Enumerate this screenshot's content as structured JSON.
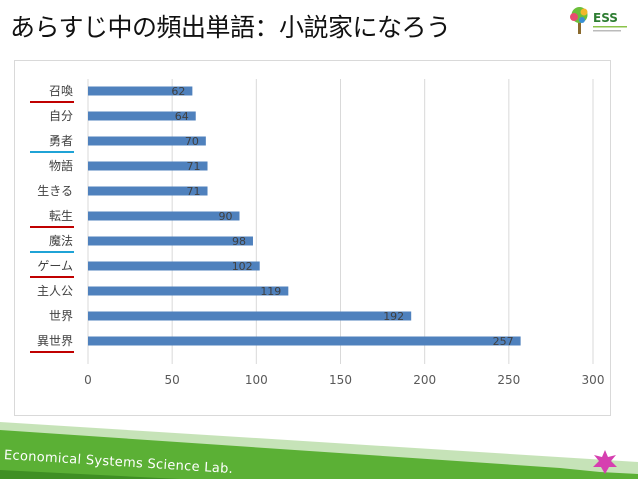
{
  "title": "あらすじ中の頻出単語：小説家になろう",
  "logo_text": "ESS",
  "footer_text": "Economical Systems Science Lab.",
  "colors": {
    "bar": "#4f81bd",
    "underline_red": "#c00000",
    "underline_blue": "#1fa3d6",
    "footer_green": "#5bb035",
    "star": "#d63fb0"
  },
  "chart_data": {
    "type": "bar",
    "orientation": "horizontal",
    "categories": [
      "召喚",
      "自分",
      "勇者",
      "物語",
      "生きる",
      "転生",
      "魔法",
      "ゲーム",
      "主人公",
      "世界",
      "異世界"
    ],
    "values": [
      62,
      64,
      70,
      71,
      71,
      90,
      98,
      102,
      119,
      192,
      257
    ],
    "xlim": [
      0,
      300
    ],
    "xticks": [
      0,
      50,
      100,
      150,
      200,
      250,
      300
    ],
    "grid": "vertical",
    "data_labels": true,
    "underlines": {
      "召喚": "red",
      "勇者": "blue",
      "転生": "red",
      "魔法": "blue",
      "ゲーム": "red",
      "異世界": "red"
    }
  }
}
